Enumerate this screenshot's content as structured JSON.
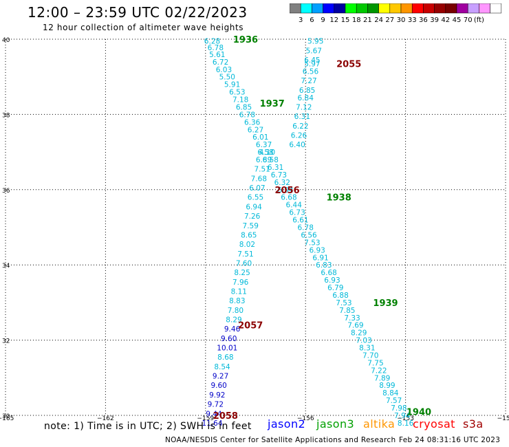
{
  "header": {
    "title": "12:00 – 23:59 UTC 02/22/2023",
    "subtitle": "12 hour collection of altimeter wave heights"
  },
  "legend": {
    "colors": [
      "#808080",
      "#00ffff",
      "#00a0ff",
      "#0000ff",
      "#0000a0",
      "#00ff00",
      "#00c800",
      "#009600",
      "#ffff00",
      "#ffc800",
      "#ff9600",
      "#ff0000",
      "#c80000",
      "#960000",
      "#780000",
      "#a000a0",
      "#c8a0ff",
      "#ff96ff",
      "#ffffff"
    ],
    "labels": [
      "3",
      "6",
      "9",
      "12",
      "15",
      "18",
      "21",
      "24",
      "27",
      "30",
      "33",
      "36",
      "39",
      "42",
      "45",
      "70",
      "(ft)"
    ]
  },
  "map": {
    "y_tick_labels": [
      "40",
      "38",
      "36",
      "34",
      "32",
      "30"
    ],
    "x_tick_labels": [
      "−165",
      "−162",
      "−159",
      "−156",
      "−153",
      "−150"
    ]
  },
  "chart_data": {
    "type": "scatter",
    "xlim": [
      -165,
      -150
    ],
    "ylim": [
      30,
      40
    ],
    "x_ticks": [
      -165,
      -162,
      -159,
      -156,
      -153,
      -150
    ],
    "y_ticks": [
      30,
      32,
      34,
      36,
      38,
      40
    ],
    "grid": true,
    "color_scale_ft": [
      3,
      6,
      9,
      12,
      15,
      18,
      21,
      24,
      27,
      30,
      33,
      36,
      39,
      42,
      45,
      70
    ],
    "series": [
      {
        "name": "jason3",
        "color": "#00c0e0",
        "points": [
          {
            "lon": -158.8,
            "lat": 39.95,
            "v": "6.28"
          },
          {
            "lon": -158.7,
            "lat": 39.78,
            "v": "6.78"
          },
          {
            "lon": -158.65,
            "lat": 39.6,
            "v": "5.61"
          },
          {
            "lon": -158.55,
            "lat": 39.4,
            "v": "6.72"
          },
          {
            "lon": -158.45,
            "lat": 39.2,
            "v": "6.03"
          },
          {
            "lon": -158.35,
            "lat": 39.0,
            "v": "5.50"
          },
          {
            "lon": -158.2,
            "lat": 38.8,
            "v": "5.91"
          },
          {
            "lon": -158.05,
            "lat": 38.6,
            "v": "6.53"
          },
          {
            "lon": -157.95,
            "lat": 38.4,
            "v": "7.18"
          },
          {
            "lon": -157.85,
            "lat": 38.2,
            "v": "6.85"
          },
          {
            "lon": -157.75,
            "lat": 38.0,
            "v": "6.78"
          },
          {
            "lon": -157.6,
            "lat": 37.8,
            "v": "6.36"
          },
          {
            "lon": -157.5,
            "lat": 37.6,
            "v": "6.27"
          },
          {
            "lon": -157.35,
            "lat": 37.4,
            "v": "6.01"
          },
          {
            "lon": -157.25,
            "lat": 37.2,
            "v": "6.37"
          },
          {
            "lon": -157.15,
            "lat": 37.0,
            "v": "4.10"
          },
          {
            "lon": -157.05,
            "lat": 36.8,
            "v": "6.58"
          },
          {
            "lon": -156.9,
            "lat": 36.6,
            "v": "6.31"
          },
          {
            "lon": -156.8,
            "lat": 36.4,
            "v": "6.73"
          },
          {
            "lon": -156.7,
            "lat": 36.2,
            "v": "6.32"
          },
          {
            "lon": -156.6,
            "lat": 36.0,
            "v": "6.94"
          },
          {
            "lon": -156.5,
            "lat": 35.8,
            "v": "6.68"
          },
          {
            "lon": -156.35,
            "lat": 35.6,
            "v": "6.44"
          },
          {
            "lon": -156.25,
            "lat": 35.4,
            "v": "6.73"
          },
          {
            "lon": -156.15,
            "lat": 35.2,
            "v": "6.61"
          },
          {
            "lon": -156.0,
            "lat": 35.0,
            "v": "6.78"
          },
          {
            "lon": -155.9,
            "lat": 34.8,
            "v": "6.56"
          },
          {
            "lon": -155.8,
            "lat": 34.6,
            "v": "7.53"
          },
          {
            "lon": -155.65,
            "lat": 34.4,
            "v": "6.93"
          },
          {
            "lon": -155.55,
            "lat": 34.2,
            "v": "6.91"
          },
          {
            "lon": -155.45,
            "lat": 34.0,
            "v": "6.83"
          },
          {
            "lon": -155.3,
            "lat": 33.8,
            "v": "6.68"
          },
          {
            "lon": -155.2,
            "lat": 33.6,
            "v": "6.93"
          },
          {
            "lon": -155.1,
            "lat": 33.4,
            "v": "6.79"
          },
          {
            "lon": -154.95,
            "lat": 33.2,
            "v": "6.88"
          },
          {
            "lon": -154.85,
            "lat": 33.0,
            "v": "7.53"
          },
          {
            "lon": -154.75,
            "lat": 32.8,
            "v": "7.85"
          },
          {
            "lon": -154.6,
            "lat": 32.6,
            "v": "7.33"
          },
          {
            "lon": -154.5,
            "lat": 32.4,
            "v": "7.69"
          },
          {
            "lon": -154.4,
            "lat": 32.2,
            "v": "8.29"
          },
          {
            "lon": -154.25,
            "lat": 32.0,
            "v": "7.03"
          },
          {
            "lon": -154.15,
            "lat": 31.8,
            "v": "8.31"
          },
          {
            "lon": -154.05,
            "lat": 31.6,
            "v": "7.70"
          },
          {
            "lon": -153.9,
            "lat": 31.4,
            "v": "7.75"
          },
          {
            "lon": -153.8,
            "lat": 31.2,
            "v": "7.22"
          },
          {
            "lon": -153.7,
            "lat": 31.0,
            "v": "7.89"
          },
          {
            "lon": -153.55,
            "lat": 30.8,
            "v": "8.99"
          },
          {
            "lon": -153.45,
            "lat": 30.6,
            "v": "8.84"
          },
          {
            "lon": -153.35,
            "lat": 30.4,
            "v": "7.57"
          },
          {
            "lon": -153.2,
            "lat": 30.2,
            "v": "7.98"
          },
          {
            "lon": -153.1,
            "lat": 30.0,
            "v": "7.94"
          },
          {
            "lon": -153.0,
            "lat": 29.8,
            "v": "8.16"
          }
        ]
      },
      {
        "name": "s3a",
        "color": "#00c0e0",
        "points": [
          {
            "lon": -155.7,
            "lat": 39.95,
            "v": "5.95"
          },
          {
            "lon": -155.75,
            "lat": 39.7,
            "v": "5.67"
          },
          {
            "lon": -155.8,
            "lat": 39.45,
            "v": "6.45"
          },
          {
            "lon": -155.8,
            "lat": 39.35,
            "v": "5.97"
          },
          {
            "lon": -155.85,
            "lat": 39.15,
            "v": "6.56"
          },
          {
            "lon": -155.9,
            "lat": 38.9,
            "v": "7.27"
          },
          {
            "lon": -155.95,
            "lat": 38.65,
            "v": "6.85"
          },
          {
            "lon": -156.0,
            "lat": 38.45,
            "v": "6.84"
          },
          {
            "lon": -156.05,
            "lat": 38.2,
            "v": "7.12"
          },
          {
            "lon": -156.1,
            "lat": 37.95,
            "v": "6.31"
          },
          {
            "lon": -156.15,
            "lat": 37.7,
            "v": "6.22"
          },
          {
            "lon": -156.2,
            "lat": 37.45,
            "v": "6.26"
          },
          {
            "lon": -156.25,
            "lat": 37.2,
            "v": "6.40"
          },
          {
            "lon": -157.2,
            "lat": 37.0,
            "v": "6.58"
          },
          {
            "lon": -157.25,
            "lat": 36.8,
            "v": "6.89"
          },
          {
            "lon": -157.3,
            "lat": 36.55,
            "v": "7.51"
          },
          {
            "lon": -157.4,
            "lat": 36.3,
            "v": "7.68"
          },
          {
            "lon": -157.45,
            "lat": 36.05,
            "v": "6.07"
          },
          {
            "lon": -157.5,
            "lat": 35.8,
            "v": "6.55"
          },
          {
            "lon": -157.55,
            "lat": 35.55,
            "v": "6.94"
          },
          {
            "lon": -157.6,
            "lat": 35.3,
            "v": "7.26"
          },
          {
            "lon": -157.65,
            "lat": 35.05,
            "v": "7.59"
          },
          {
            "lon": -157.7,
            "lat": 34.8,
            "v": "8.65"
          },
          {
            "lon": -157.75,
            "lat": 34.55,
            "v": "8.02"
          },
          {
            "lon": -157.8,
            "lat": 34.3,
            "v": "7.51"
          },
          {
            "lon": -157.85,
            "lat": 34.05,
            "v": "7.60"
          },
          {
            "lon": -157.9,
            "lat": 33.8,
            "v": "8.25"
          },
          {
            "lon": -157.95,
            "lat": 33.55,
            "v": "7.96"
          },
          {
            "lon": -158.0,
            "lat": 33.3,
            "v": "8.11"
          },
          {
            "lon": -158.05,
            "lat": 33.05,
            "v": "8.83"
          },
          {
            "lon": -158.1,
            "lat": 32.8,
            "v": "7.80"
          },
          {
            "lon": -158.15,
            "lat": 32.55,
            "v": "8.29"
          },
          {
            "lon": -158.2,
            "lat": 32.3,
            "v": "9.46"
          },
          {
            "lon": -158.3,
            "lat": 32.05,
            "v": "9.60"
          },
          {
            "lon": -158.35,
            "lat": 31.8,
            "v": "10.01"
          },
          {
            "lon": -158.4,
            "lat": 31.55,
            "v": "8.68"
          },
          {
            "lon": -158.5,
            "lat": 31.3,
            "v": "8.54"
          },
          {
            "lon": -158.55,
            "lat": 31.05,
            "v": "9.27"
          },
          {
            "lon": -158.6,
            "lat": 30.8,
            "v": "9.60"
          },
          {
            "lon": -158.65,
            "lat": 30.55,
            "v": "9.92"
          },
          {
            "lon": -158.7,
            "lat": 30.3,
            "v": "9.72"
          },
          {
            "lon": -158.75,
            "lat": 30.05,
            "v": "9.44"
          },
          {
            "lon": -158.8,
            "lat": 29.8,
            "v": "11.64"
          }
        ]
      }
    ],
    "time_labels": [
      {
        "lon": -157.8,
        "lat": 40.0,
        "text": "1936",
        "sat": "jason3"
      },
      {
        "lon": -157.0,
        "lat": 38.3,
        "text": "1937",
        "sat": "jason3"
      },
      {
        "lon": -155.0,
        "lat": 35.8,
        "text": "1938",
        "sat": "jason3"
      },
      {
        "lon": -153.6,
        "lat": 33.0,
        "text": "1939",
        "sat": "jason3"
      },
      {
        "lon": -152.6,
        "lat": 30.1,
        "text": "1940",
        "sat": "jason3"
      },
      {
        "lon": -154.7,
        "lat": 39.35,
        "text": "2055",
        "sat": "s3a"
      },
      {
        "lon": -156.55,
        "lat": 36.0,
        "text": "2056",
        "sat": "s3a"
      },
      {
        "lon": -157.65,
        "lat": 32.4,
        "text": "2057",
        "sat": "s3a"
      },
      {
        "lon": -158.4,
        "lat": 30.0,
        "text": "2058",
        "sat": "s3a"
      }
    ]
  },
  "notes": {
    "note": "note:  1) Time is in UTC;  2) SWH is in feet",
    "satellites": [
      {
        "name": "jason2",
        "color": "#0000ff"
      },
      {
        "name": "jason3",
        "color": "#00a000"
      },
      {
        "name": "altika",
        "color": "#ff9600"
      },
      {
        "name": "cryosat",
        "color": "#ff0000"
      },
      {
        "name": "s3a",
        "color": "#a00000"
      }
    ],
    "footer": "NOAA/NESDIS Center for Satellite Applications and Research",
    "timestamp": "Feb 24 08:31:16 UTC 2023"
  }
}
